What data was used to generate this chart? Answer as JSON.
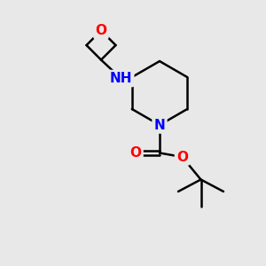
{
  "background_color": "#e8e8e8",
  "bond_color": "#000000",
  "bond_width": 1.8,
  "atom_colors": {
    "O": "#ff0000",
    "N": "#0000ff",
    "H": "#808080",
    "C": "#000000"
  },
  "font_size_atom": 11,
  "fig_size": [
    3.0,
    3.0
  ],
  "dpi": 100
}
